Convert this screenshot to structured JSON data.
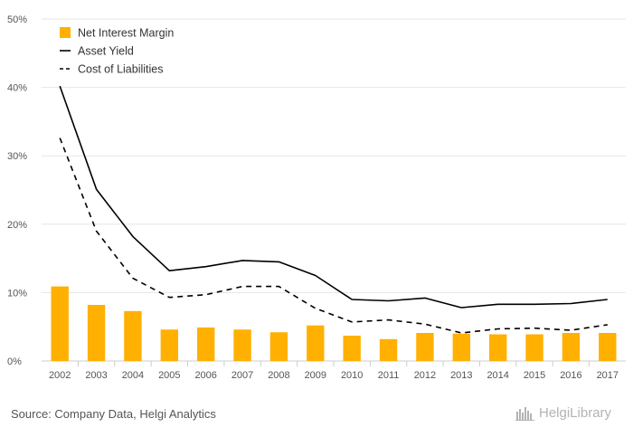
{
  "chart_data": {
    "type": "bar",
    "categories": [
      "2002",
      "2003",
      "2004",
      "2005",
      "2006",
      "2007",
      "2008",
      "2009",
      "2010",
      "2011",
      "2012",
      "2013",
      "2014",
      "2015",
      "2016",
      "2017"
    ],
    "series": [
      {
        "name": "Net Interest Margin",
        "kind": "bar",
        "color": "#FFB000",
        "values": [
          10.9,
          8.2,
          7.3,
          4.6,
          4.9,
          4.6,
          4.2,
          5.2,
          3.7,
          3.2,
          4.1,
          4.0,
          3.9,
          3.9,
          4.1,
          4.1
        ]
      },
      {
        "name": "Asset Yield",
        "kind": "line",
        "style": "solid",
        "color": "#000000",
        "values": [
          40.2,
          25.1,
          18.2,
          13.2,
          13.8,
          14.7,
          14.5,
          12.5,
          9.0,
          8.8,
          9.2,
          7.8,
          8.3,
          8.3,
          8.4,
          9.0
        ]
      },
      {
        "name": "Cost of Liabilities",
        "kind": "line",
        "style": "dashed",
        "color": "#000000",
        "values": [
          32.6,
          19.0,
          12.1,
          9.3,
          9.7,
          10.9,
          10.9,
          7.7,
          5.7,
          6.0,
          5.4,
          4.1,
          4.7,
          4.8,
          4.5,
          5.3
        ]
      }
    ],
    "title": "",
    "xlabel": "",
    "ylabel": "",
    "ylim": [
      0,
      50
    ],
    "yticks": [
      0,
      10,
      20,
      30,
      40,
      50
    ],
    "ytick_labels": [
      "0%",
      "10%",
      "20%",
      "30%",
      "40%",
      "50%"
    ],
    "grid": true,
    "legend_position": "top-left"
  },
  "footer": {
    "source": "Source: Company Data, Helgi Analytics",
    "logo_text": "HelgiLibrary"
  }
}
